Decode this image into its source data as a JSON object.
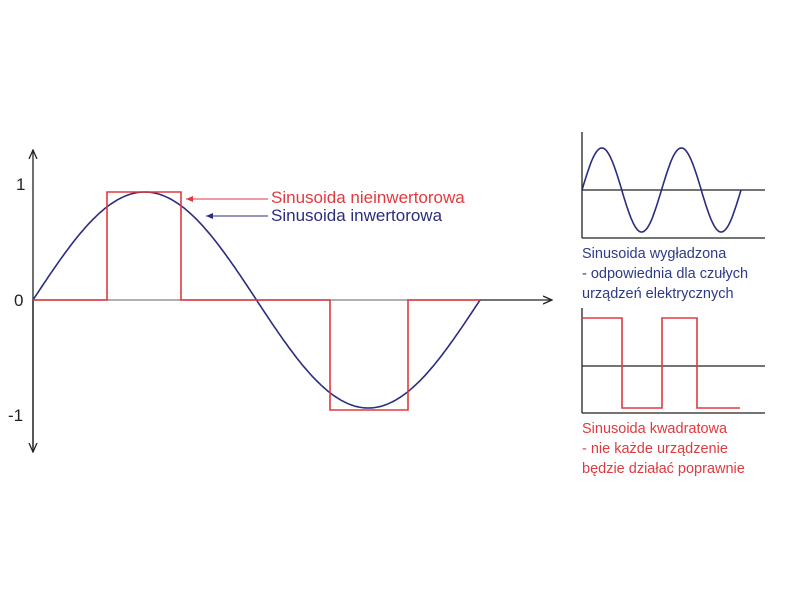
{
  "colors": {
    "sine": "#2b2d7f",
    "square": "#e03a3e",
    "axis": "#222222"
  },
  "main_chart": {
    "y_ticks": [
      "1",
      "0",
      "-1"
    ],
    "legend": {
      "square_label": "Sinusoida nieinwertorowa",
      "sine_label": "Sinusoida inwertorowa"
    }
  },
  "panels": [
    {
      "caption": [
        "Sinusoida wygładzona",
        "- odpowiednia dla czułych",
        "urządzeń elektrycznych"
      ]
    },
    {
      "caption": [
        "Sinusoida kwadratowa",
        "- nie każde urządzenie",
        "będzie działać poprawnie"
      ]
    }
  ]
}
